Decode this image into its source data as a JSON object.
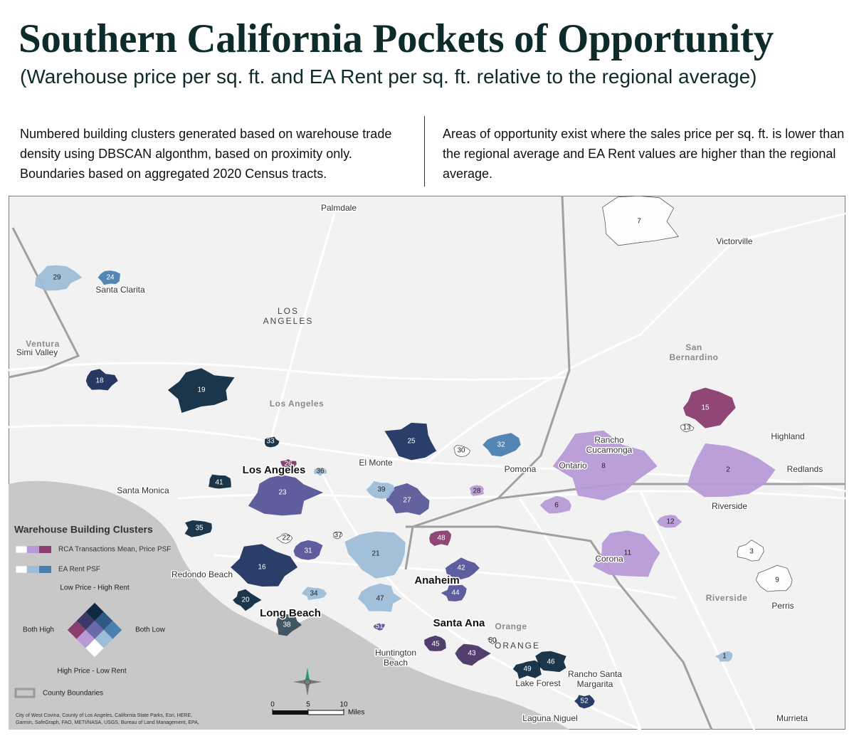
{
  "header": {
    "title": "Southern California Pockets of Opportunity",
    "subtitle": "(Warehouse price per sq. ft. and EA Rent per sq. ft. relative to the regional average)"
  },
  "notes": [
    "Numbered building clusters generated based on warehouse trade density using DBSCAN algonthm, based on proximity only. Boundaries based on aggregated 2020 Census tracts.",
    "Areas of opportunity exist where the sales price per sq. ft. is lower than the regional average and EA Rent values are higher than the regional average."
  ],
  "map": {
    "places": [
      [
        "Palmdale"
      ],
      [
        "Victorville"
      ],
      [
        "Santa Clarita"
      ],
      [
        "LOS",
        "ANGELES"
      ],
      [
        "Ventura"
      ],
      [
        "Simi Valley"
      ],
      [
        "San",
        "Bernardino"
      ],
      [
        "Los Angeles"
      ],
      [
        "Rancho",
        "Cucamonga"
      ],
      [
        "Highland"
      ],
      [
        "Los Angeles"
      ],
      [
        "El Monte"
      ],
      [
        "Pomona"
      ],
      [
        "Ontario"
      ],
      [
        "Redlands"
      ],
      [
        "Santa Monica"
      ],
      [
        "Riverside"
      ],
      [
        "Corona"
      ],
      [
        "Redondo Beach"
      ],
      [
        "Anaheim"
      ],
      [
        "Riverside"
      ],
      [
        "Perris"
      ],
      [
        "Long Beach"
      ],
      [
        "Santa Ana"
      ],
      [
        "Orange"
      ],
      [
        "ORANGE"
      ],
      [
        "Huntington",
        "Beach"
      ],
      [
        "Rancho Santa",
        "Margarita"
      ],
      [
        "Lake Forest"
      ],
      [
        "Laguna Niguel"
      ],
      [
        "Murrieta"
      ]
    ],
    "clusters": [
      {
        "label": "7",
        "color": "#ffffff"
      },
      {
        "label": "8",
        "color": "#b79ad6"
      },
      {
        "label": "2",
        "color": "#b79ad6"
      },
      {
        "label": "11",
        "color": "#b79ad6"
      },
      {
        "label": "29",
        "color": "#9dbdd8"
      },
      {
        "label": "24",
        "color": "#4a80b0"
      },
      {
        "label": "18",
        "color": "#1e2d5a"
      },
      {
        "label": "19",
        "color": "#0f2a40"
      },
      {
        "label": "33",
        "color": "#0f2a40"
      },
      {
        "label": "26",
        "color": "#7a3a68"
      },
      {
        "label": "36",
        "color": "#9dbdd8"
      },
      {
        "label": "25",
        "color": "#1f3461"
      },
      {
        "label": "30",
        "color": "#ffffff"
      },
      {
        "label": "32",
        "color": "#4a80b0"
      },
      {
        "label": "27",
        "color": "#5a5a99"
      },
      {
        "label": "39",
        "color": "#9dbdd8"
      },
      {
        "label": "28",
        "color": "#b79ad6"
      },
      {
        "label": "23",
        "color": "#55559a"
      },
      {
        "label": "41",
        "color": "#0f2a40"
      },
      {
        "label": "35",
        "color": "#0f2a40"
      },
      {
        "label": "22",
        "color": "#ffffff"
      },
      {
        "label": "37",
        "color": "#ffffff"
      },
      {
        "label": "31",
        "color": "#55559a"
      },
      {
        "label": "21",
        "color": "#9dbdd8"
      },
      {
        "label": "48",
        "color": "#8a3d6e"
      },
      {
        "label": "16",
        "color": "#1f3461"
      },
      {
        "label": "20",
        "color": "#0f2a40"
      },
      {
        "label": "34",
        "color": "#9dbdd8"
      },
      {
        "label": "42",
        "color": "#55559a"
      },
      {
        "label": "44",
        "color": "#55559a"
      },
      {
        "label": "47",
        "color": "#9dbdd8"
      },
      {
        "label": "38",
        "color": "#3a4e5c"
      },
      {
        "label": "51",
        "color": "#55559a"
      },
      {
        "label": "45",
        "color": "#4a3566"
      },
      {
        "label": "43",
        "color": "#4a3566"
      },
      {
        "label": "50",
        "color": "#ffffff"
      },
      {
        "label": "49",
        "color": "#0f2a40"
      },
      {
        "label": "46",
        "color": "#0f2a40"
      },
      {
        "label": "52",
        "color": "#1f3461"
      },
      {
        "label": "15",
        "color": "#8a3d6e"
      },
      {
        "label": "13",
        "color": "#ffffff"
      },
      {
        "label": "6",
        "color": "#b79ad6"
      },
      {
        "label": "12",
        "color": "#b79ad6"
      },
      {
        "label": "3",
        "color": "#ffffff"
      },
      {
        "label": "9",
        "color": "#ffffff"
      },
      {
        "label": "1",
        "color": "#9dbdd8"
      }
    ]
  },
  "legend": {
    "title": "Warehouse Building Clusters",
    "price": "RCA Transactions Mean, Price PSF",
    "rent": "EA Rent PSF",
    "top": "Low Price - High Rent",
    "left": "Both High",
    "right": "Both Low",
    "bottom": "High Price - Low Rent",
    "county": "County Boundaries"
  },
  "scale": {
    "ticks": [
      0,
      5,
      10
    ],
    "unit": "Miles"
  },
  "attribution": [
    "City of West Covina, County of Los Angeles, California State Parks, Esri, HERE,",
    "Garmin, SafeGraph, FAO, METI/NASA, USGS, Bureau of Land Management, EPA,"
  ]
}
